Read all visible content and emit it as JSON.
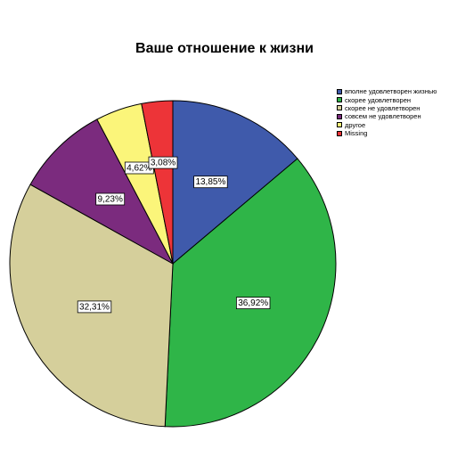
{
  "chart_data": {
    "type": "pie",
    "title": "Ваше отношение к жизни",
    "categories": [
      "вполне удовлетворен жизнью",
      "скорее удовлетворен",
      "скорее не удовлетворен",
      "совсем не удовлетворен",
      "другое",
      "Missing"
    ],
    "values": [
      13.85,
      36.92,
      32.31,
      9.23,
      4.62,
      3.08
    ],
    "data_labels": [
      "13,85%",
      "36,92%",
      "32,31%",
      "9,23%",
      "4,62%",
      "3,08%"
    ],
    "colors": [
      "#3f5aab",
      "#2fb548",
      "#d5cf9b",
      "#7b2b7e",
      "#fbf57a",
      "#ed3438"
    ],
    "start_angle_deg": 0,
    "direction": "clockwise",
    "legend_position": "right"
  }
}
